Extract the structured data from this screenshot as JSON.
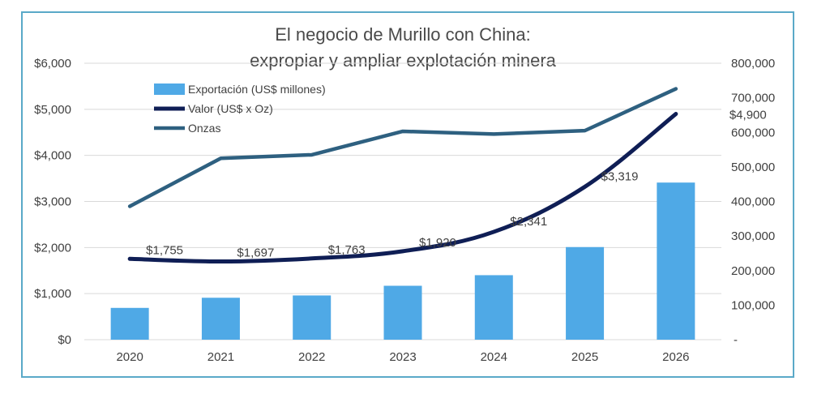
{
  "chart_data": {
    "type": "bar",
    "title_line1": "El negocio de Murillo con China:",
    "title_line2": "expropiar y ampliar explotación minera",
    "categories": [
      "2020",
      "2021",
      "2022",
      "2023",
      "2024",
      "2025",
      "2026"
    ],
    "left_axis": {
      "ylim": [
        0,
        6000
      ],
      "ticks": [
        "$0",
        "$1,000",
        "$2,000",
        "$3,000",
        "$4,000",
        "$5,000",
        "$6,000"
      ]
    },
    "right_axis": {
      "ylim": [
        0,
        800000
      ],
      "ticks": [
        "-",
        "100,000",
        "200,000",
        "300,000",
        "400,000",
        "500,000",
        "600,000",
        "700,000",
        "800,000"
      ]
    },
    "series": [
      {
        "name": "Exportación (US$ millones)",
        "type": "bar",
        "axis": "left",
        "color": "#4fa9e6",
        "values": [
          690,
          910,
          960,
          1170,
          1400,
          2010,
          3410
        ]
      },
      {
        "name": "Valor (US$ x Oz)",
        "type": "line",
        "axis": "left",
        "color": "#0f1e55",
        "values": [
          1755,
          1697,
          1763,
          1920,
          2341,
          3319,
          4900
        ],
        "labels": [
          "$1,755",
          "$1,697",
          "$1,763",
          "$1,920",
          "$2,341",
          "$3,319",
          "$4,900"
        ]
      },
      {
        "name": "Onzas",
        "type": "line",
        "axis": "right",
        "color": "#2e6080",
        "values": [
          386000,
          525000,
          535000,
          603000,
          595000,
          605000,
          726000
        ]
      }
    ],
    "grid": true,
    "legend_position": "top-left"
  }
}
